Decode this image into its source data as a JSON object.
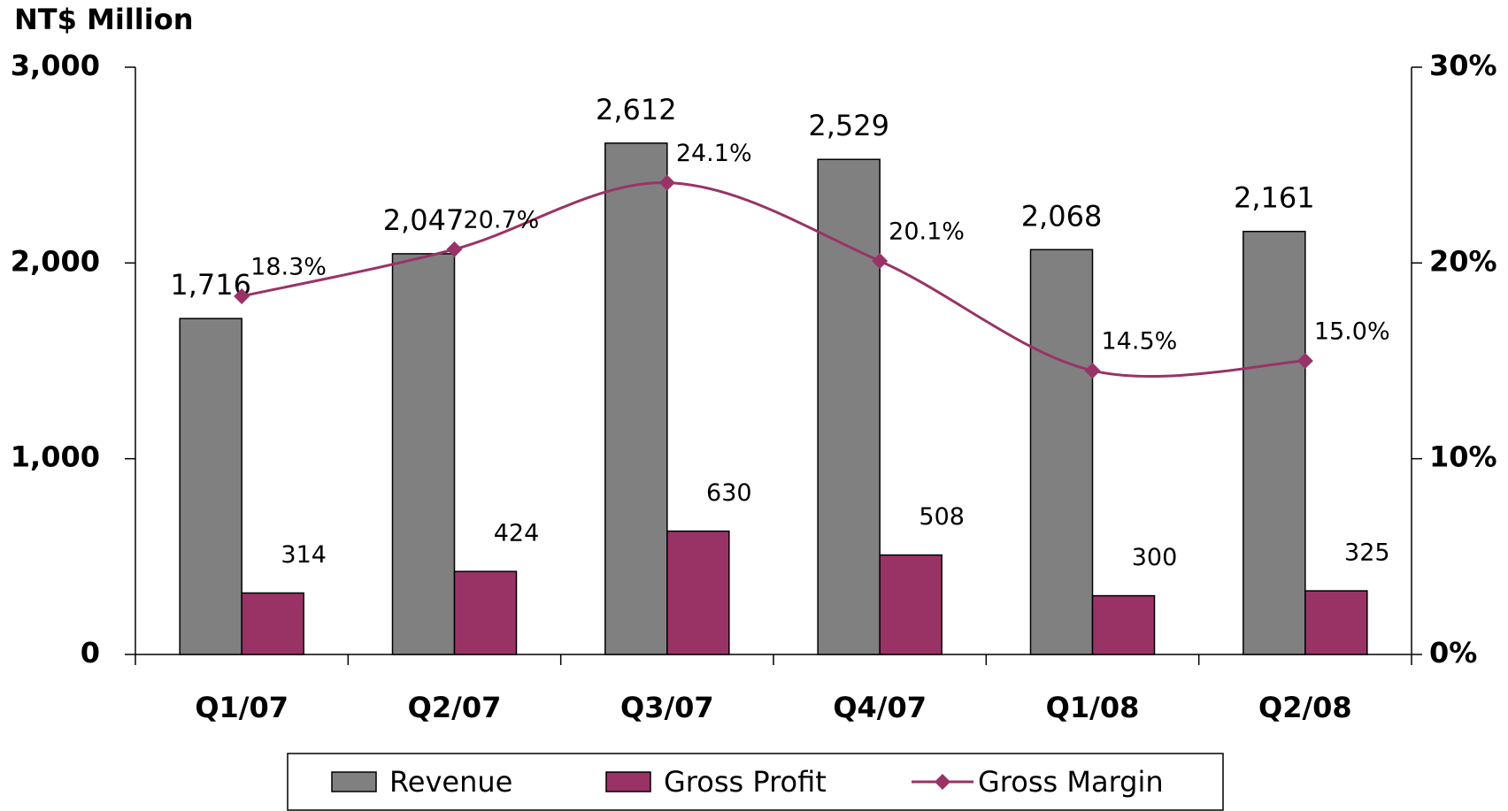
{
  "chart_data": {
    "type": "bar",
    "y_label": "NT$ Million",
    "categories": [
      "Q1/07",
      "Q2/07",
      "Q3/07",
      "Q4/07",
      "Q1/08",
      "Q2/08"
    ],
    "series": [
      {
        "name": "Revenue",
        "color": "#808080",
        "values": [
          1716,
          2047,
          2612,
          2529,
          2068,
          2161
        ],
        "value_labels": [
          "1,716",
          "2,047",
          "2,612",
          "2,529",
          "2,068",
          "2,161"
        ]
      },
      {
        "name": "Gross Profit",
        "color": "#993366",
        "values": [
          314,
          424,
          630,
          508,
          300,
          325
        ]
      },
      {
        "name": "Gross Margin",
        "type": "line",
        "axis": "y2",
        "color": "#993366",
        "values": [
          18.3,
          20.7,
          24.1,
          20.1,
          14.5,
          15.0
        ],
        "value_labels": [
          "18.3%",
          "20.7%",
          "24.1%",
          "20.1%",
          "14.5%",
          "15.0%"
        ]
      }
    ],
    "ylim": [
      0,
      3000
    ],
    "yticks": [
      0,
      {
        "value": 1000,
        "label": "1,000"
      },
      {
        "value": 2000,
        "label": "2,000"
      },
      {
        "value": 3000,
        "label": "3,000"
      }
    ],
    "y2lim": [
      0,
      30
    ],
    "y2ticks": [
      {
        "value": 0,
        "label": "0%"
      },
      {
        "value": 10,
        "label": "10%"
      },
      {
        "value": 20,
        "label": "20%"
      },
      {
        "value": 30,
        "label": "30%"
      }
    ],
    "legend": "bottom"
  }
}
